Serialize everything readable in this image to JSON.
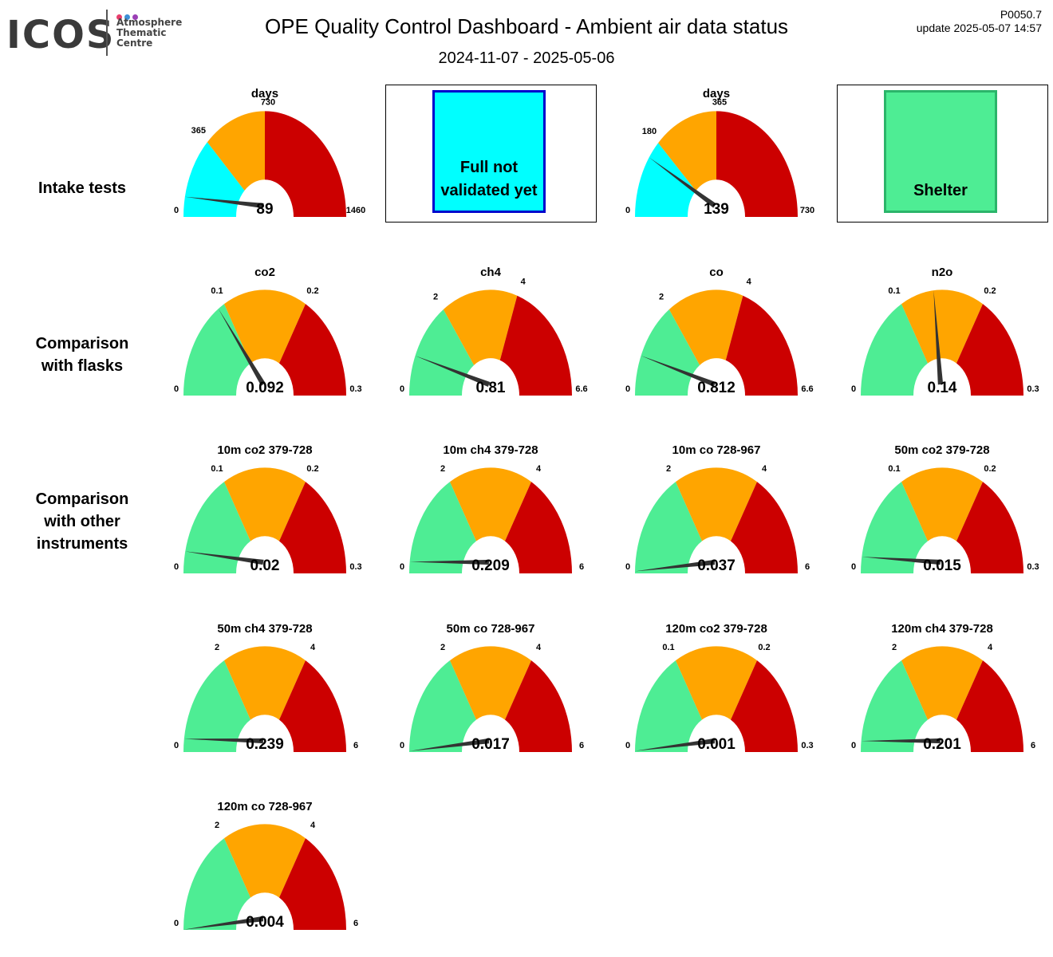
{
  "header": {
    "logo": "ICOS",
    "logo_sub": [
      "Atmosphere",
      "Thematic",
      "Centre"
    ],
    "logo_dots": [
      "#e83e6c",
      "#3d8fd6",
      "#9b3fb5"
    ],
    "title": "OPE  Quality Control Dashboard - Ambient air data status",
    "date_range": "2024-11-07 - 2025-05-06",
    "code": "P0050.7",
    "update": "update  2025-05-07 14:57"
  },
  "colors": {
    "green": "#4eed94",
    "cyan": "#00ffff",
    "orange": "#ffa500",
    "red": "#cc0000",
    "needle": "#333333",
    "blue_border": "#0000cc",
    "shelter_border": "#2bb56a"
  },
  "rows": [
    {
      "label": "Intake tests"
    },
    {
      "label": "Comparison\nwith flasks"
    },
    {
      "label": "Comparison\nwith other\ninstruments"
    }
  ],
  "status_boxes": [
    {
      "text": "Full not validated yet",
      "fill": "#00ffff",
      "border": "#0000cc"
    },
    {
      "text": "Shelter",
      "fill": "#4eed94",
      "border": "#2bb56a"
    }
  ],
  "gauges": [
    {
      "title": "days",
      "min": "0",
      "t1": "365",
      "t2": "730",
      "max": "1460",
      "value": "89",
      "v": 89,
      "lo": 0,
      "a": 365,
      "b": 730,
      "hi": 1460,
      "first": "cyan",
      "t2_top": true
    },
    {
      "title": "days",
      "min": "0",
      "t1": "180",
      "t2": "365",
      "max": "730",
      "value": "139",
      "v": 139,
      "lo": 0,
      "a": 180,
      "b": 365,
      "hi": 730,
      "first": "cyan",
      "t2_top": true
    },
    {
      "title": "co2",
      "min": "0",
      "t1": "0.1",
      "t2": "0.2",
      "max": "0.3",
      "value": "0.092",
      "v": 0.092,
      "lo": 0,
      "a": 0.1,
      "b": 0.2,
      "hi": 0.3,
      "first": "green"
    },
    {
      "title": "ch4",
      "min": "0",
      "t1": "2",
      "t2": "4",
      "max": "6.6",
      "value": "0.81",
      "v": 0.81,
      "lo": 0,
      "a": 2,
      "b": 4,
      "hi": 6.6,
      "first": "green"
    },
    {
      "title": "co",
      "min": "0",
      "t1": "2",
      "t2": "4",
      "max": "6.6",
      "value": "0.812",
      "v": 0.812,
      "lo": 0,
      "a": 2,
      "b": 4,
      "hi": 6.6,
      "first": "green"
    },
    {
      "title": "n2o",
      "min": "0",
      "t1": "0.1",
      "t2": "0.2",
      "max": "0.3",
      "value": "0.14",
      "v": 0.14,
      "lo": 0,
      "a": 0.1,
      "b": 0.2,
      "hi": 0.3,
      "first": "green"
    },
    {
      "title": "10m co2 379-728",
      "min": "0",
      "t1": "0.1",
      "t2": "0.2",
      "max": "0.3",
      "value": "0.02",
      "v": 0.02,
      "lo": 0,
      "a": 0.1,
      "b": 0.2,
      "hi": 0.3,
      "first": "green"
    },
    {
      "title": "10m ch4 379-728",
      "min": "0",
      "t1": "2",
      "t2": "4",
      "max": "6",
      "value": "0.209",
      "v": 0.209,
      "lo": 0,
      "a": 2,
      "b": 4,
      "hi": 6,
      "first": "green"
    },
    {
      "title": "10m co 728-967",
      "min": "0",
      "t1": "2",
      "t2": "4",
      "max": "6",
      "value": "0.037",
      "v": 0.037,
      "lo": 0,
      "a": 2,
      "b": 4,
      "hi": 6,
      "first": "green"
    },
    {
      "title": "50m co2 379-728",
      "min": "0",
      "t1": "0.1",
      "t2": "0.2",
      "max": "0.3",
      "value": "0.015",
      "v": 0.015,
      "lo": 0,
      "a": 0.1,
      "b": 0.2,
      "hi": 0.3,
      "first": "green"
    },
    {
      "title": "50m ch4 379-728",
      "min": "0",
      "t1": "2",
      "t2": "4",
      "max": "6",
      "value": "0.239",
      "v": 0.239,
      "lo": 0,
      "a": 2,
      "b": 4,
      "hi": 6,
      "first": "green"
    },
    {
      "title": "50m co 728-967",
      "min": "0",
      "t1": "2",
      "t2": "4",
      "max": "6",
      "value": "0.017",
      "v": 0.017,
      "lo": 0,
      "a": 2,
      "b": 4,
      "hi": 6,
      "first": "green"
    },
    {
      "title": "120m co2 379-728",
      "min": "0",
      "t1": "0.1",
      "t2": "0.2",
      "max": "0.3",
      "value": "0.001",
      "v": 0.001,
      "lo": 0,
      "a": 0.1,
      "b": 0.2,
      "hi": 0.3,
      "first": "green"
    },
    {
      "title": "120m ch4 379-728",
      "min": "0",
      "t1": "2",
      "t2": "4",
      "max": "6",
      "value": "0.201",
      "v": 0.201,
      "lo": 0,
      "a": 2,
      "b": 4,
      "hi": 6,
      "first": "green"
    },
    {
      "title": "120m co 728-967",
      "min": "0",
      "t1": "2",
      "t2": "4",
      "max": "6",
      "value": "0.004",
      "v": 0.004,
      "lo": 0,
      "a": 2,
      "b": 4,
      "hi": 6,
      "first": "green"
    }
  ]
}
